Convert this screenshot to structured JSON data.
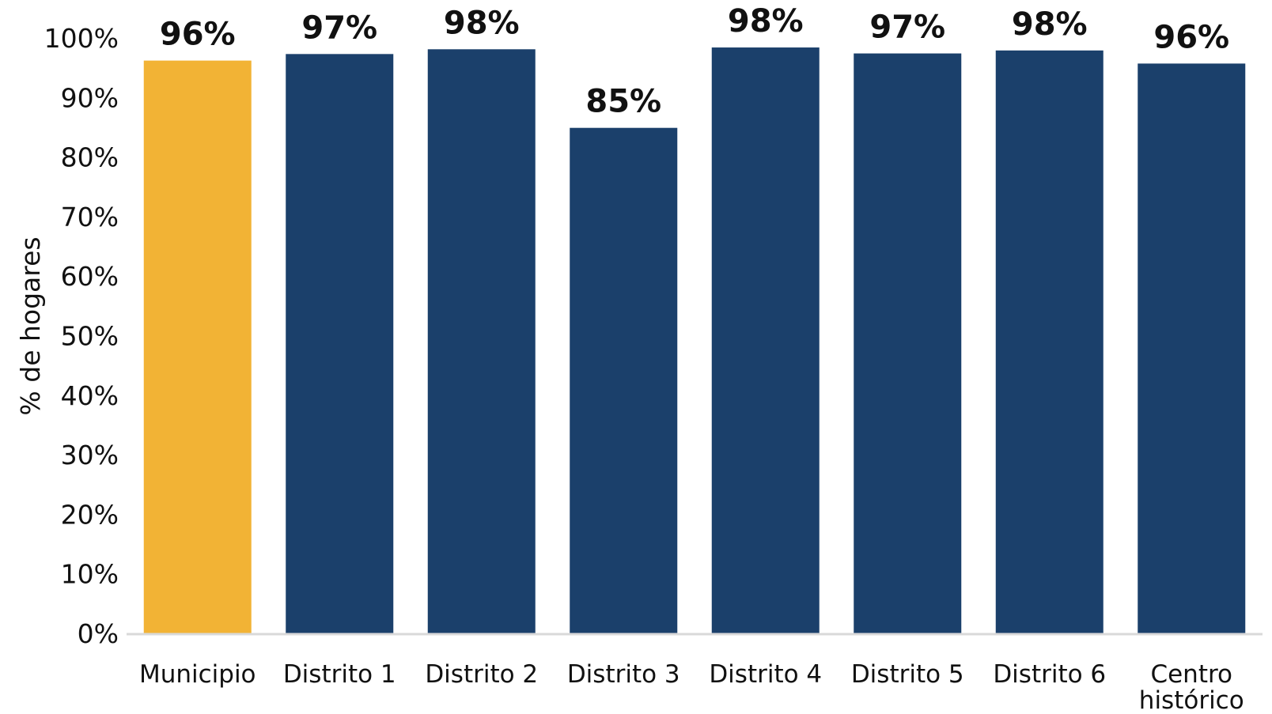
{
  "chart_data": {
    "type": "bar",
    "categories": [
      "Municipio",
      "Distrito 1",
      "Distrito 2",
      "Distrito 3",
      "Distrito 4",
      "Distrito 5",
      "Distrito 6",
      "Centro histórico"
    ],
    "category_lines": [
      [
        "Municipio"
      ],
      [
        "Distrito 1"
      ],
      [
        "Distrito 2"
      ],
      [
        "Distrito 3"
      ],
      [
        "Distrito 4"
      ],
      [
        "Distrito 5"
      ],
      [
        "Distrito 6"
      ],
      [
        "Centro",
        "histórico"
      ]
    ],
    "values": [
      96.2,
      97.3,
      98.1,
      84.9,
      98.4,
      97.4,
      97.9,
      95.7
    ],
    "value_labels": [
      "96%",
      "97%",
      "98%",
      "85%",
      "98%",
      "97%",
      "98%",
      "96%"
    ],
    "colors": [
      "#F2B335",
      "#1B406B",
      "#1B406B",
      "#1B406B",
      "#1B406B",
      "#1B406B",
      "#1B406B",
      "#1B406B"
    ],
    "title": "",
    "xlabel": "",
    "ylabel": "% de hogares",
    "ylim": [
      0,
      100
    ],
    "yticks": [
      0,
      10,
      20,
      30,
      40,
      50,
      60,
      70,
      80,
      90,
      100
    ],
    "ytick_labels": [
      "0%",
      "10%",
      "20%",
      "30%",
      "40%",
      "50%",
      "60%",
      "70%",
      "80%",
      "90%",
      "100%"
    ],
    "grid": false,
    "legend": "none",
    "axis_color": "#D9D9D9"
  }
}
